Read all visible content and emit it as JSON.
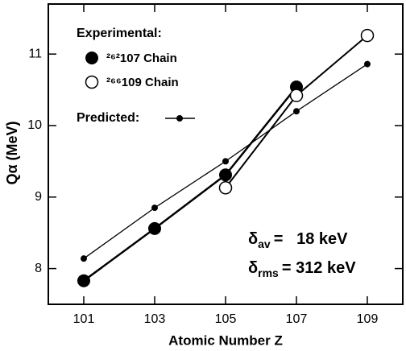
{
  "chart_data": {
    "type": "line",
    "xlabel": "Atomic Number Z",
    "ylabel": "Qα (MeV)",
    "x": [
      101,
      103,
      105,
      107,
      109
    ],
    "series": [
      {
        "name": "²⁶²107 Chain",
        "color": "#000000",
        "marker": "filled",
        "values": [
          7.83,
          8.56,
          9.31,
          10.54,
          null
        ]
      },
      {
        "name": "²⁶⁶109 Chain",
        "color": "#000000",
        "marker": "open",
        "values": [
          null,
          null,
          9.13,
          10.42,
          11.26
        ]
      },
      {
        "name": "Predicted:",
        "color": "#000000",
        "marker": "dot",
        "values": [
          8.14,
          8.85,
          9.5,
          10.2,
          10.86
        ]
      }
    ],
    "legend_title": "Experimental:",
    "annotations": [
      {
        "base": "δ",
        "sub": "av",
        "text": "=   18 keV"
      },
      {
        "base": "δ",
        "sub": "rms",
        "text": "= 312 keV"
      }
    ],
    "xlim": [
      100,
      110
    ],
    "ylim": [
      7.5,
      11.7
    ],
    "xticks": [
      101,
      103,
      105,
      107,
      109
    ],
    "yticks": [
      8,
      9,
      10,
      11
    ]
  }
}
